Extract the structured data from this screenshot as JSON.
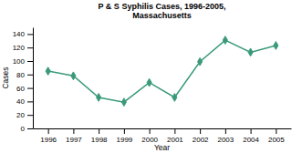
{
  "chart_data": {
    "type": "line",
    "title": "P & S Syphilis Cases, 1996-2005,\nMassachusetts",
    "xlabel": "Year",
    "ylabel": "Cases",
    "x": [
      1996,
      1997,
      1998,
      1999,
      2000,
      2001,
      2002,
      2003,
      2004,
      2005
    ],
    "values": [
      85,
      78,
      46,
      39,
      68,
      46,
      99,
      131,
      113,
      123
    ],
    "color": "#3a9a78",
    "marker": "diamond",
    "xlim": [
      1995.4,
      2005.6
    ],
    "xticks": [
      1996,
      1997,
      1998,
      1999,
      2000,
      2001,
      2002,
      2003,
      2004,
      2005
    ],
    "ylim": [
      0,
      150
    ],
    "yticks": [
      0,
      20,
      40,
      60,
      80,
      100,
      120,
      140
    ]
  }
}
